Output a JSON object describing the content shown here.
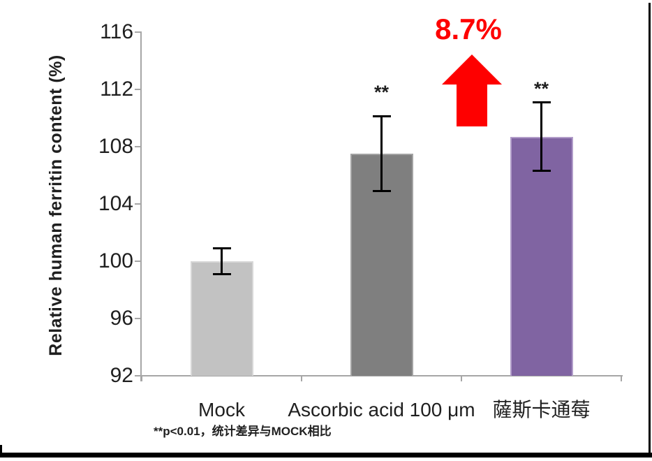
{
  "chart_data": {
    "type": "bar",
    "categories": [
      "Mock",
      "Ascorbic acid 100 μm",
      "薩斯卡通莓"
    ],
    "values": [
      100.0,
      107.5,
      108.7
    ],
    "error_bars": [
      0.9,
      2.6,
      2.4
    ],
    "significance_labels": [
      "",
      "**",
      "**"
    ],
    "bar_colors": [
      "#c2c2c2",
      "#7f7f7f",
      "#8064a2"
    ],
    "bar_border_colors": [
      "#d7d7d7",
      "#a3a3a3",
      "#b19cc9"
    ],
    "title": "",
    "xlabel": "",
    "ylabel": "Relative human ferritin content (%)",
    "yticks": [
      92,
      96,
      100,
      104,
      108,
      112,
      116
    ],
    "ylim": [
      92,
      116
    ],
    "grid": false,
    "legend": false,
    "axis_color": "#a6a6a6",
    "error_bar_color": "#000000",
    "text_color": "#1f1f1f",
    "annotation": {
      "text": "8.7%",
      "shape": "up-arrow",
      "color": "#fe0000"
    },
    "footnote": "**p<0.01，统计差异与MOCK相比"
  }
}
